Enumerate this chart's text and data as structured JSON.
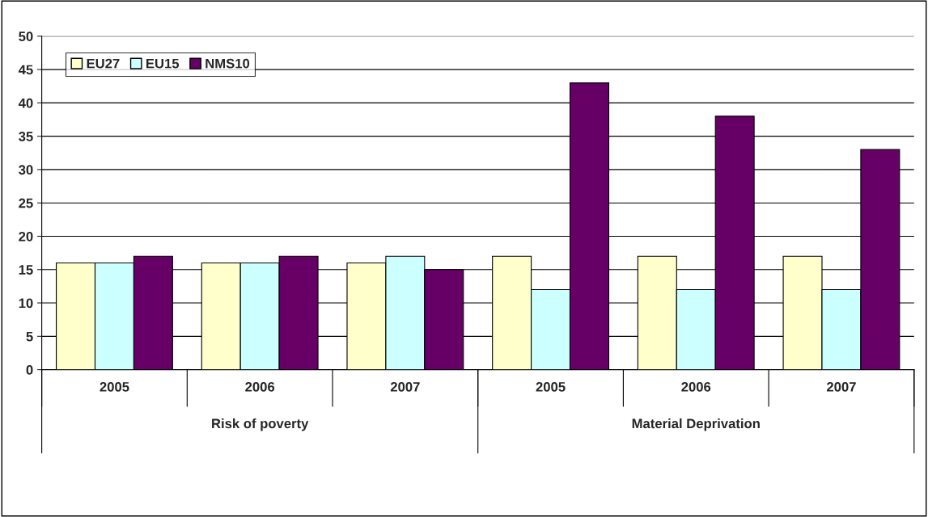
{
  "chart_data": {
    "type": "bar",
    "categories": [
      "2005",
      "2006",
      "2007",
      "2005",
      "2006",
      "2007"
    ],
    "series": [
      {
        "name": "EU27",
        "color": "#ffffcc",
        "values": [
          16,
          16,
          16,
          17,
          17,
          17
        ]
      },
      {
        "name": "EU15",
        "color": "#ccffff",
        "values": [
          16,
          16,
          17,
          12,
          12,
          12
        ]
      },
      {
        "name": "NMS10",
        "color": "#660066",
        "values": [
          17,
          17,
          15,
          43,
          38,
          33
        ]
      }
    ],
    "annotations": [
      "Risk of poverty",
      "Material Deprivation"
    ],
    "ylim": [
      0,
      50
    ],
    "yticks": [
      0,
      5,
      10,
      15,
      20,
      25,
      30,
      35,
      40,
      45,
      50
    ],
    "grid": "y",
    "legend": "top left"
  }
}
